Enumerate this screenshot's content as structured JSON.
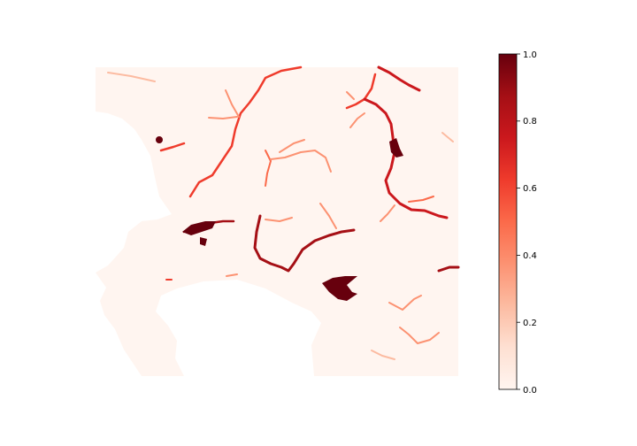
{
  "colorbar": {
    "colormap": "Reds",
    "min": 0.0,
    "max": 1.0,
    "ticks": [
      "0.0",
      "0.2",
      "0.4",
      "0.6",
      "0.8",
      "1.0"
    ],
    "color_low": "#fff5f0",
    "color_mid": "#fb6a4a",
    "color_high": "#67000d"
  },
  "map": {
    "background_value": 0.0,
    "no_data_color": "#ffffff",
    "axes_visible": false
  }
}
